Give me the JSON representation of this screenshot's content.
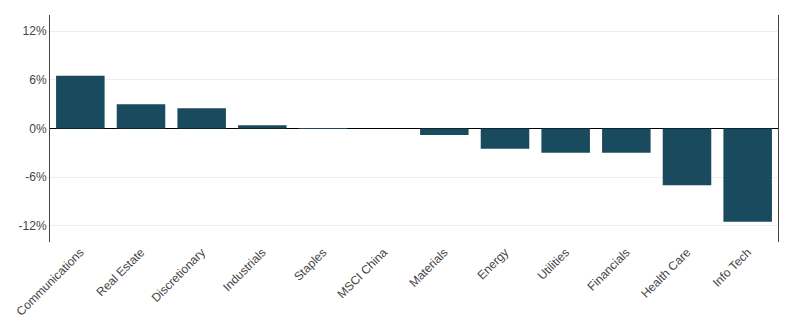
{
  "chart_data": {
    "type": "bar",
    "categories": [
      "Communications",
      "Real Estate",
      "Discretionary",
      "Industrials",
      "Staples",
      "MSCI China",
      "Materials",
      "Energy",
      "Utilities",
      "Financials",
      "Health Care",
      "Info Tech"
    ],
    "values": [
      6.5,
      3.0,
      2.5,
      0.4,
      0.05,
      0.0,
      -0.8,
      -2.5,
      -3.0,
      -3.0,
      -7.0,
      -11.5
    ],
    "color": "#1a4a5e",
    "ylim": [
      -14,
      14
    ],
    "yticks": [
      {
        "value": -12,
        "label": "-12%"
      },
      {
        "value": -6,
        "label": "-6%"
      },
      {
        "value": 0,
        "label": "0%"
      },
      {
        "value": 6,
        "label": "6%"
      },
      {
        "value": 12,
        "label": "12%"
      }
    ],
    "grid": true
  }
}
